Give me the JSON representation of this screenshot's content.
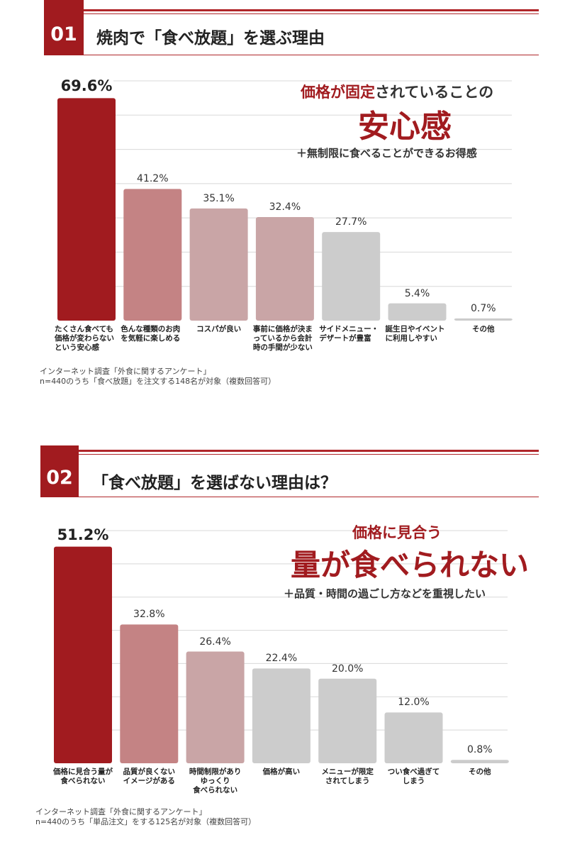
{
  "sections": [
    {
      "number": "01",
      "title": "焼肉で「食べ放題」を選ぶ理由",
      "headline": {
        "line1_red": "価格が固定",
        "line1_rest": "されていることの",
        "line2": "安心感",
        "line3": "＋無制限に食べることができるお得感"
      },
      "note": [
        "インターネット調査「外食に関するアンケート」",
        "n=440のうち「食べ放題」を注文する148名が対象（複数回答可）"
      ],
      "colors": {
        "top": "#a11b1f",
        "second": "#c48384",
        "mid": "#c9a5a6",
        "rest": "#cccccc"
      }
    },
    {
      "number": "02",
      "title": "「食べ放題」を選ばない理由は？",
      "headline": {
        "line1": "価格に見合う",
        "line2": "量が食べられない",
        "line3": "＋品質・時間の過ごし方などを重視したい"
      },
      "note": [
        "インターネット調査「外食に関するアンケート」",
        "n=440のうち「単品注文」をする125名が対象（複数回答可）"
      ],
      "colors": {
        "top": "#a11b1f",
        "second": "#c48384",
        "mid": "#c9a5a6",
        "rest": "#cccccc"
      }
    }
  ],
  "chart_data": [
    {
      "type": "bar",
      "categories": [
        "たくさん食べても\n価格が変わらない\nという安心感",
        "色んな種類のお肉\nを気軽に楽しめる",
        "コスパが良い",
        "事前に価格が決ま\nっているから会計\n時の手間が少ない",
        "サイドメニュー・\nデザートが豊富",
        "誕生日やイベント\nに利用しやすい",
        "その他"
      ],
      "values": [
        69.6,
        41.2,
        35.1,
        32.4,
        27.7,
        5.4,
        0.7
      ],
      "value_labels": [
        "69.6%",
        "41.2%",
        "35.1%",
        "32.4%",
        "27.7%",
        "5.4%",
        "0.7%"
      ],
      "color_groups": [
        "top",
        "second",
        "mid",
        "mid",
        "rest",
        "rest",
        "rest"
      ],
      "ylim": [
        0,
        75
      ],
      "grid": true
    },
    {
      "type": "bar",
      "categories": [
        "価格に見合う量が\n食べられない",
        "品質が良くない\nイメージがある",
        "時間制限があり\nゆっくり\n食べられない",
        "価格が高い",
        "メニューが限定\nされてしまう",
        "つい食べ過ぎて\nしまう",
        "その他"
      ],
      "values": [
        51.2,
        32.8,
        26.4,
        22.4,
        20.0,
        12.0,
        0.8
      ],
      "value_labels": [
        "51.2%",
        "32.8%",
        "26.4%",
        "22.4%",
        "20.0%",
        "12.0%",
        "0.8%"
      ],
      "color_groups": [
        "top",
        "second",
        "mid",
        "rest",
        "rest",
        "rest",
        "rest"
      ],
      "ylim": [
        0,
        55
      ],
      "grid": true
    }
  ]
}
